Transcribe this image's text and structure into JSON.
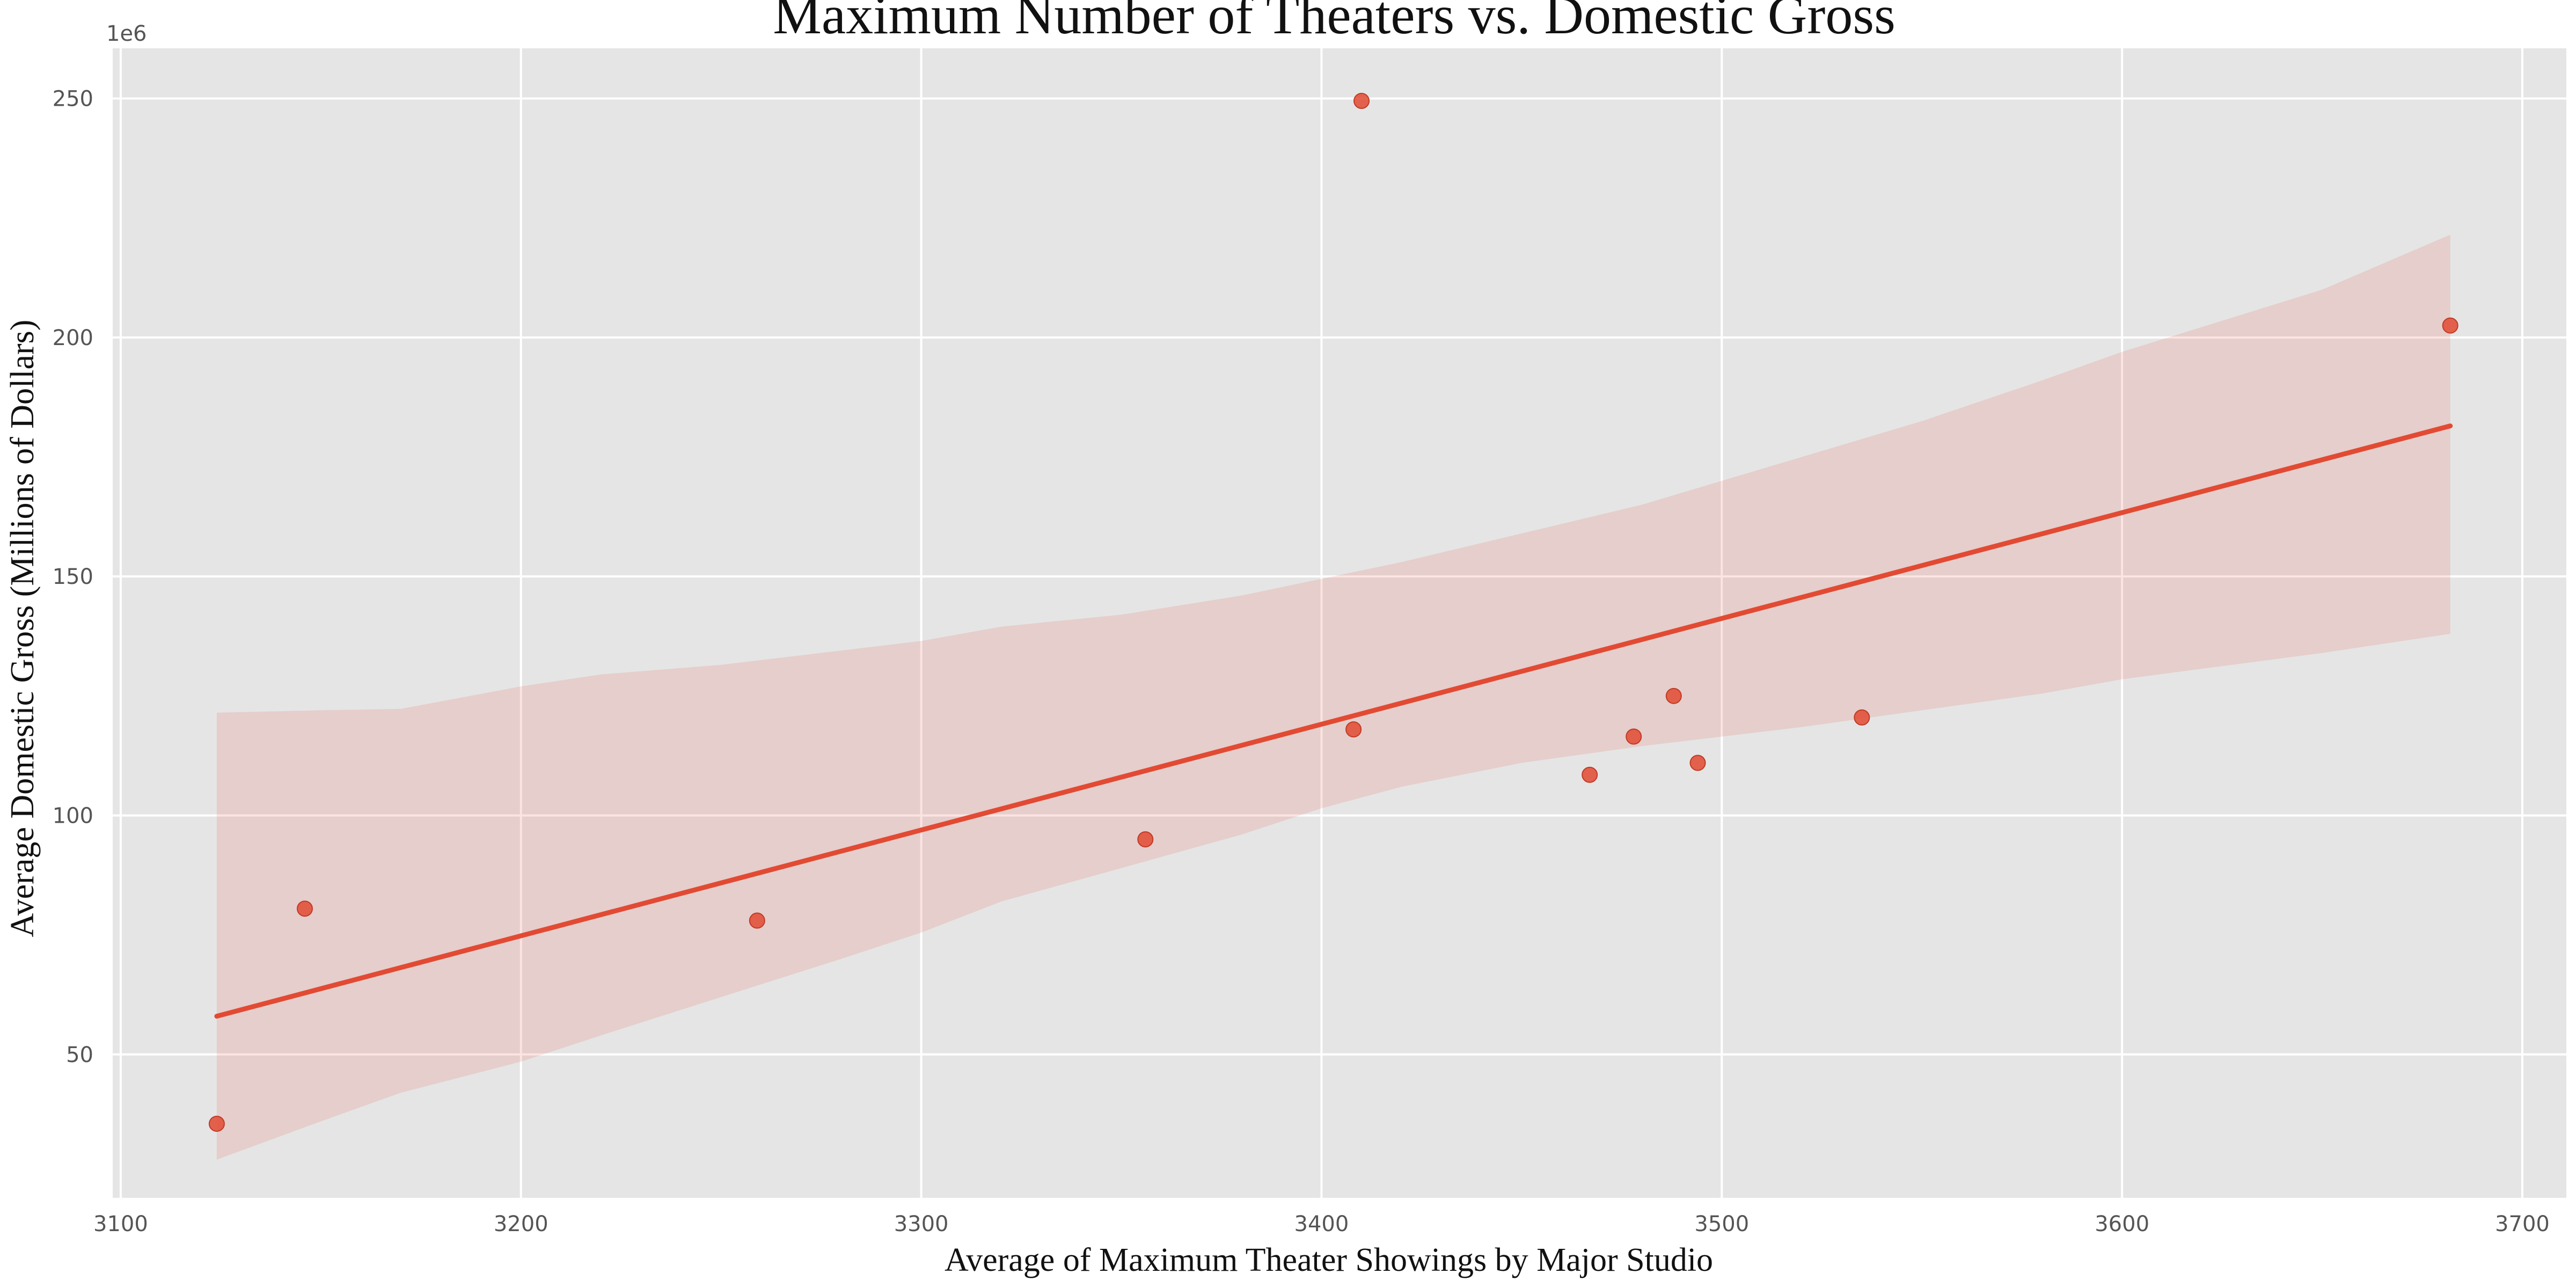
{
  "chart_data": {
    "type": "scatter",
    "title": "Maximum Number of Theaters vs. Domestic Gross",
    "xlabel": "Average of Maximum Theater Showings by Major Studio",
    "ylabel": "Average Domestic Gross (Millions of Dollars)",
    "y_offset_label": "1e6",
    "xlim": [
      3098,
      3711
    ],
    "ylim": [
      20,
      260.5
    ],
    "x_ticks": [
      3100,
      3200,
      3300,
      3400,
      3500,
      3600,
      3700
    ],
    "y_ticks": [
      50,
      100,
      150,
      200,
      250
    ],
    "grid": true,
    "points": [
      {
        "x": 3124,
        "y": 35.5
      },
      {
        "x": 3146,
        "y": 80.5
      },
      {
        "x": 3259,
        "y": 78
      },
      {
        "x": 3356,
        "y": 95
      },
      {
        "x": 3408,
        "y": 118
      },
      {
        "x": 3410,
        "y": 249.5
      },
      {
        "x": 3467,
        "y": 108.5
      },
      {
        "x": 3478,
        "y": 116.5
      },
      {
        "x": 3488,
        "y": 125
      },
      {
        "x": 3494,
        "y": 111
      },
      {
        "x": 3535,
        "y": 120.5
      },
      {
        "x": 3682,
        "y": 202.5
      }
    ],
    "regression_line": {
      "x": [
        3124,
        3682
      ],
      "y": [
        58,
        181.5
      ]
    },
    "confidence_band": {
      "x": [
        3124,
        3150,
        3170,
        3200,
        3220,
        3250,
        3280,
        3300,
        3320,
        3350,
        3380,
        3400,
        3420,
        3450,
        3480,
        3500,
        3520,
        3550,
        3580,
        3600,
        3650,
        3682
      ],
      "upper": [
        121.5,
        122,
        122.3,
        127,
        129.5,
        131.5,
        134.5,
        136.5,
        139.5,
        142,
        146,
        149.5,
        153,
        159,
        165,
        170,
        175,
        182.5,
        191,
        197,
        210,
        221.5
      ],
      "lower": [
        28,
        36,
        42,
        48.5,
        54,
        62,
        70,
        75.5,
        82,
        89,
        96,
        101.5,
        106,
        111,
        114.5,
        116.5,
        118.5,
        122,
        125.5,
        128.5,
        134,
        138
      ]
    },
    "colors": {
      "background": "#e5e5e5",
      "grid": "#ffffff",
      "series": "#e24a33",
      "band": "#e24a33"
    }
  }
}
